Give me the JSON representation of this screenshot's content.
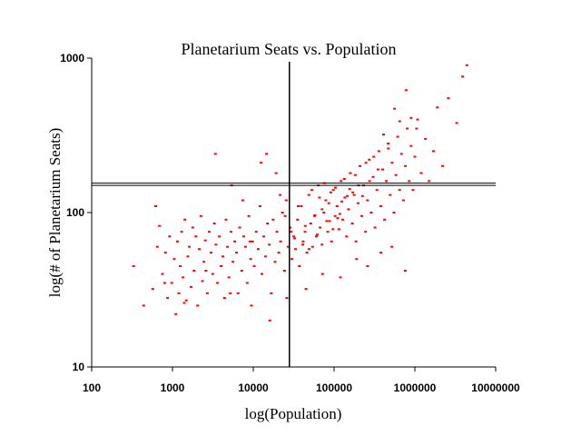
{
  "chart_data": {
    "type": "scatter",
    "title": "Planetarium Seats vs. Population",
    "xlabel": "log(Population)",
    "ylabel": "log(# of Planetarium Seats)",
    "x_scale": "log",
    "y_scale": "log",
    "xlim": [
      100,
      10000000
    ],
    "ylim": [
      10,
      1000
    ],
    "x_ticks": [
      "100",
      "1000",
      "10000",
      "100000",
      "1000000",
      "10000000"
    ],
    "y_ticks": [
      "10",
      "100",
      "1000"
    ],
    "point_color": "#ff0000",
    "grid": false,
    "reference_lines": {
      "vertical_x": 28000,
      "horizontal_y": [
        150,
        155
      ]
    },
    "series": [
      {
        "x": [
          330,
          440,
          570,
          620,
          650,
          690,
          750,
          820,
          870,
          920,
          980,
          1050,
          1100,
          1150,
          1200,
          1250,
          1300,
          1350,
          1420,
          1480,
          1550,
          1620,
          1700,
          1780,
          1850,
          1950,
          2050,
          2150,
          2250,
          2350,
          2450,
          2550,
          2700,
          2850,
          3000,
          3150,
          3300,
          3450,
          3600,
          3800,
          4000,
          4200,
          4400,
          4600,
          4800,
          5000,
          5300,
          5600,
          5900,
          6200,
          6500,
          6800,
          7200,
          7600,
          8000,
          8400,
          8800,
          9300,
          9800,
          10300,
          10900,
          11500,
          12100,
          12800,
          13500,
          14200,
          15000,
          15800,
          16700,
          17600,
          18600,
          19600,
          20700,
          21800,
          23000,
          24300,
          25600,
          27000,
          28500,
          30000,
          31700,
          33400,
          35300,
          37200,
          39300,
          41400,
          43700,
          46100,
          48700,
          51400,
          54200,
          57200,
          60400,
          63700,
          67200,
          70900,
          74900,
          79000,
          83400,
          88000,
          92900,
          98000,
          103000,
          109000,
          115000,
          122000,
          128000,
          136000,
          143000,
          151000,
          159000,
          168000,
          177000,
          187000,
          198000,
          209000,
          220000,
          232000,
          245000,
          259000,
          273000,
          288000,
          304000,
          321000,
          339000,
          358000,
          378000,
          399000,
          421000,
          444000,
          469000,
          495000,
          522000,
          551000,
          582000,
          614000,
          648000,
          684000,
          722000,
          762000,
          804000,
          849000,
          896000,
          946000,
          1000000,
          1080000,
          1200000,
          1350000,
          1500000,
          1700000,
          1900000,
          2200000,
          2600000,
          3300000,
          3900000,
          4400000,
          800,
          1400,
          2600,
          5200,
          9500,
          16000,
          26000,
          45000,
          72000,
          120000,
          190000,
          260000,
          380000,
          520000,
          760000,
          3400,
          5400,
          7400,
          9100,
          12500,
          14600,
          19200,
          21500,
          24800,
          29500,
          32500,
          36000,
          41000,
          44000,
          49000,
          53000,
          58000,
          62000,
          66000,
          71000,
          76000,
          81000,
          86000,
          91000,
          97000,
          104000,
          111000,
          118000,
          125000,
          134000,
          146000,
          156000,
          171000,
          183000,
          201000,
          225000,
          248000,
          275000,
          310000,
          350000,
          410000,
          470000,
          560000,
          650000,
          780000,
          900000,
          1050000
        ],
        "y": [
          45,
          25,
          32,
          110,
          60,
          82,
          40,
          55,
          28,
          70,
          35,
          50,
          22,
          65,
          30,
          45,
          75,
          38,
          90,
          27,
          52,
          60,
          33,
          80,
          42,
          70,
          25,
          58,
          95,
          36,
          48,
          66,
          30,
          75,
          55,
          40,
          85,
          62,
          35,
          70,
          45,
          52,
          28,
          90,
          60,
          38,
          75,
          48,
          65,
          55,
          30,
          80,
          42,
          70,
          60,
          35,
          95,
          50,
          65,
          45,
          75,
          58,
          110,
          40,
          70,
          52,
          85,
          62,
          30,
          90,
          48,
          75,
          55,
          65,
          100,
          42,
          120,
          60,
          80,
          50,
          70,
          58,
          90,
          45,
          110,
          65,
          75,
          55,
          130,
          85,
          60,
          95,
          70,
          150,
          80,
          62,
          100,
          120,
          75,
          88,
          65,
          140,
          95,
          110,
          78,
          160,
          90,
          125,
          70,
          105,
          180,
          85,
          130,
          65,
          115,
          200,
          95,
          150,
          75,
          120,
          220,
          100,
          170,
          80,
          140,
          250,
          110,
          190,
          90,
          160,
          280,
          130,
          210,
          100,
          175,
          310,
          140,
          240,
          120,
          200,
          350,
          160,
          270,
          140,
          230,
          400,
          180,
          300,
          160,
          250,
          480,
          200,
          550,
          380,
          760,
          900,
          35,
          26,
          42,
          30,
          25,
          20,
          28,
          32,
          40,
          38,
          50,
          45,
          55,
          60,
          42,
          240,
          150,
          120,
          65,
          210,
          240,
          180,
          130,
          95,
          75,
          68,
          110,
          62,
          82,
          58,
          140,
          96,
          72,
          125,
          105,
          155,
          88,
          115,
          135,
          78,
          145,
          92,
          98,
          118,
          165,
          128,
          142,
          135,
          175,
          150,
          128,
          210,
          160,
          230,
          190,
          320,
          260,
          470,
          390,
          620,
          410,
          350
        ]
      }
    ]
  }
}
